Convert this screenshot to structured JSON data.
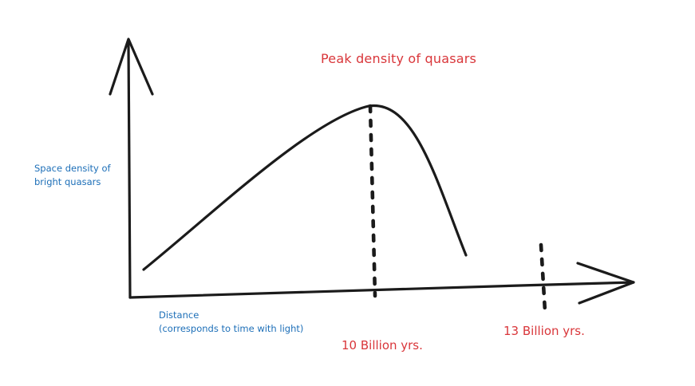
{
  "diagram": {
    "title": "Peak density of quasars",
    "y_axis_label_line1": "Space density of",
    "y_axis_label_line2": "bright quasars",
    "x_axis_label_line1": "Distance",
    "x_axis_label_line2": "(corresponds to time with light)",
    "marker_10_label": "10 Billion yrs.",
    "marker_13_label": "13 Billion yrs."
  },
  "colors": {
    "stroke": "#1b1b1b",
    "red_text": "#d9363a",
    "blue_text": "#1d6fb8",
    "background": "#ffffff"
  }
}
